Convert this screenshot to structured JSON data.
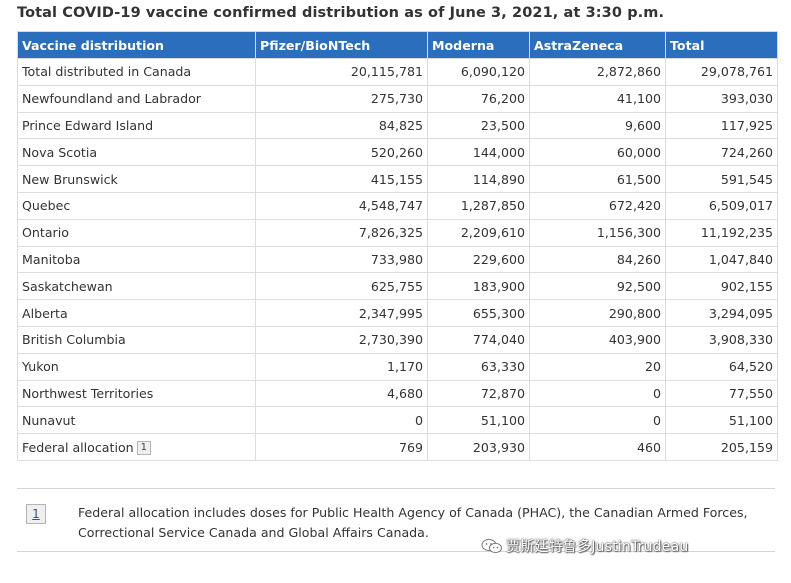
{
  "caption": "Total COVID-19 vaccine confirmed distribution as of June 3, 2021, at 3:30 p.m.",
  "table": {
    "headers": [
      "Vaccine distribution",
      "Pfizer/BioNTech",
      "Moderna",
      "AstraZeneca",
      "Total"
    ],
    "rows": [
      {
        "region": "Total distributed in Canada",
        "pfizer": "20,115,781",
        "moderna": "6,090,120",
        "astra": "2,872,860",
        "total": "29,078,761"
      },
      {
        "region": "Newfoundland and Labrador",
        "pfizer": "275,730",
        "moderna": "76,200",
        "astra": "41,100",
        "total": "393,030"
      },
      {
        "region": "Prince Edward Island",
        "pfizer": "84,825",
        "moderna": "23,500",
        "astra": "9,600",
        "total": "117,925"
      },
      {
        "region": "Nova Scotia",
        "pfizer": "520,260",
        "moderna": "144,000",
        "astra": "60,000",
        "total": "724,260"
      },
      {
        "region": "New Brunswick",
        "pfizer": "415,155",
        "moderna": "114,890",
        "astra": "61,500",
        "total": "591,545"
      },
      {
        "region": "Quebec",
        "pfizer": "4,548,747",
        "moderna": "1,287,850",
        "astra": "672,420",
        "total": "6,509,017"
      },
      {
        "region": "Ontario",
        "pfizer": "7,826,325",
        "moderna": "2,209,610",
        "astra": "1,156,300",
        "total": "11,192,235"
      },
      {
        "region": "Manitoba",
        "pfizer": "733,980",
        "moderna": "229,600",
        "astra": "84,260",
        "total": "1,047,840"
      },
      {
        "region": "Saskatchewan",
        "pfizer": "625,755",
        "moderna": "183,900",
        "astra": "92,500",
        "total": "902,155"
      },
      {
        "region": "Alberta",
        "pfizer": "2,347,995",
        "moderna": "655,300",
        "astra": "290,800",
        "total": "3,294,095"
      },
      {
        "region": "British Columbia",
        "pfizer": "2,730,390",
        "moderna": "774,040",
        "astra": "403,900",
        "total": "3,908,330"
      },
      {
        "region": "Yukon",
        "pfizer": "1,170",
        "moderna": "63,330",
        "astra": "20",
        "total": "64,520"
      },
      {
        "region": "Northwest Territories",
        "pfizer": "4,680",
        "moderna": "72,870",
        "astra": "0",
        "total": "77,550"
      },
      {
        "region": "Nunavut",
        "pfizer": "0",
        "moderna": "51,100",
        "astra": "0",
        "total": "51,100"
      },
      {
        "region": "Federal allocation",
        "pfizer": "769",
        "moderna": "203,930",
        "astra": "460",
        "total": "205,159",
        "footnote_ref": "1"
      }
    ]
  },
  "footnote": {
    "label": "1",
    "text": "Federal allocation includes doses for Public Health Agency of Canada (PHAC), the Canadian Armed Forces, Correctional Service Canada and Global Affairs Canada."
  },
  "watermark": {
    "text": "贾斯廷特鲁多JustinTrudeau",
    "icon": "wechat-icon"
  },
  "colors": {
    "header_bg": "#2a6ebd",
    "header_text": "#ffffff",
    "border": "#dddddd"
  }
}
